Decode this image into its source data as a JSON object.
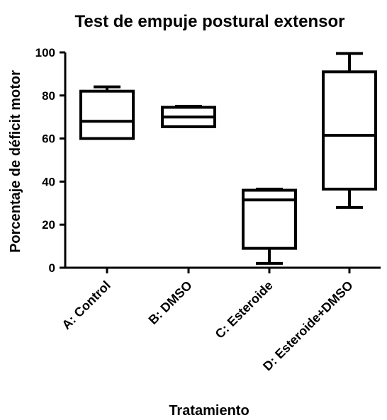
{
  "chart_data": {
    "type": "box",
    "title": "Test de empuje postural extensor",
    "xlabel": "Tratamiento",
    "ylabel": "Porcentaje de déficit motor",
    "ylim": [
      0,
      100
    ],
    "yticks": [
      0,
      20,
      40,
      60,
      80,
      100
    ],
    "categories": [
      "A: Control",
      "B: DMSO",
      "C: Esteroide",
      "D: Esteroide+DMSO"
    ],
    "boxes": [
      {
        "category": "A: Control",
        "min": 60,
        "q1": 60,
        "median": 68,
        "q3": 82,
        "max": 84
      },
      {
        "category": "B: DMSO",
        "min": 65.5,
        "q1": 65.5,
        "median": 70,
        "q3": 74.5,
        "max": 75
      },
      {
        "category": "C: Esteroide",
        "min": 2,
        "q1": 9,
        "median": 31.5,
        "q3": 36,
        "max": 36.5
      },
      {
        "category": "D: Esteroide+DMSO",
        "min": 28,
        "q1": 36.5,
        "median": 61.5,
        "q3": 91,
        "max": 99.5
      }
    ],
    "grid": false,
    "legend": "none"
  }
}
